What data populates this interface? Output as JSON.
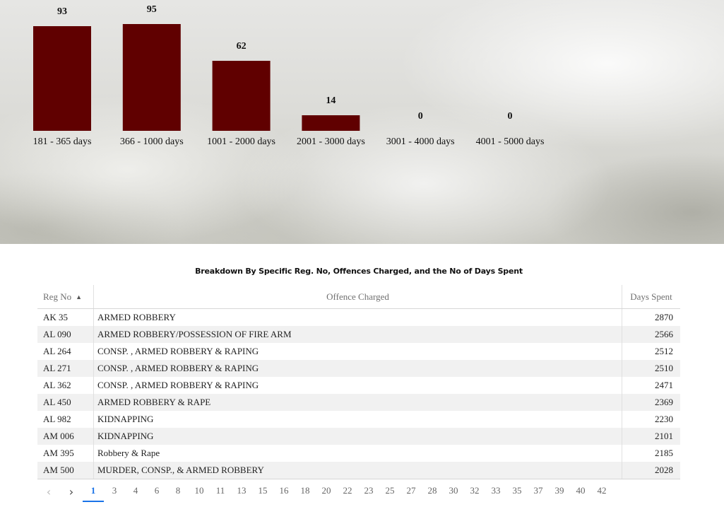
{
  "chart_data": {
    "type": "bar",
    "categories": [
      "181 - 365 days",
      "366 - 1000 days",
      "1001 - 2000 days",
      "2001 - 3000 days",
      "3001 - 4000 days",
      "4001 - 5000 days"
    ],
    "values": [
      93,
      95,
      62,
      14,
      0,
      0
    ],
    "ylim": [
      0,
      95
    ],
    "grid": false,
    "colors": {
      "bar": "#600000"
    }
  },
  "table": {
    "title": "Breakdown By Specific Reg. No, Offences Charged, and the No of Days Spent",
    "columns": [
      "Reg No",
      "Offence Charged",
      "Days Spent"
    ],
    "sort_icon": "sort-ascending-icon",
    "rows": [
      [
        "AK 35",
        "ARMED ROBBERY",
        "2870"
      ],
      [
        "AL 090",
        "ARMED ROBBERY/POSSESSION OF FIRE ARM",
        "2566"
      ],
      [
        "AL 264",
        "CONSP. , ARMED ROBBERY & RAPING",
        "2512"
      ],
      [
        "AL 271",
        "CONSP. , ARMED ROBBERY & RAPING",
        "2510"
      ],
      [
        "AL 362",
        "CONSP. , ARMED ROBBERY & RAPING",
        "2471"
      ],
      [
        "AL 450",
        "ARMED ROBBERY & RAPE",
        "2369"
      ],
      [
        "AL 982",
        "KIDNAPPING",
        "2230"
      ],
      [
        "AM 006",
        "KIDNAPPING",
        "2101"
      ],
      [
        "AM 395",
        "Robbery & Rape",
        "2185"
      ],
      [
        "AM 500",
        "MURDER, CONSP., & ARMED ROBBERY",
        "2028"
      ]
    ]
  },
  "pagination": {
    "prev_icon": "chevron-left-icon",
    "next_icon": "chevron-right-icon",
    "pages": [
      "1",
      "3",
      "4",
      "6",
      "8",
      "10",
      "11",
      "13",
      "15",
      "16",
      "18",
      "20",
      "22",
      "23",
      "25",
      "27",
      "28",
      "30",
      "32",
      "33",
      "35",
      "37",
      "39",
      "40",
      "42"
    ],
    "current": "1"
  },
  "colors": {
    "accent": "#1a73e8",
    "row_alt": "#f1f1f1"
  }
}
